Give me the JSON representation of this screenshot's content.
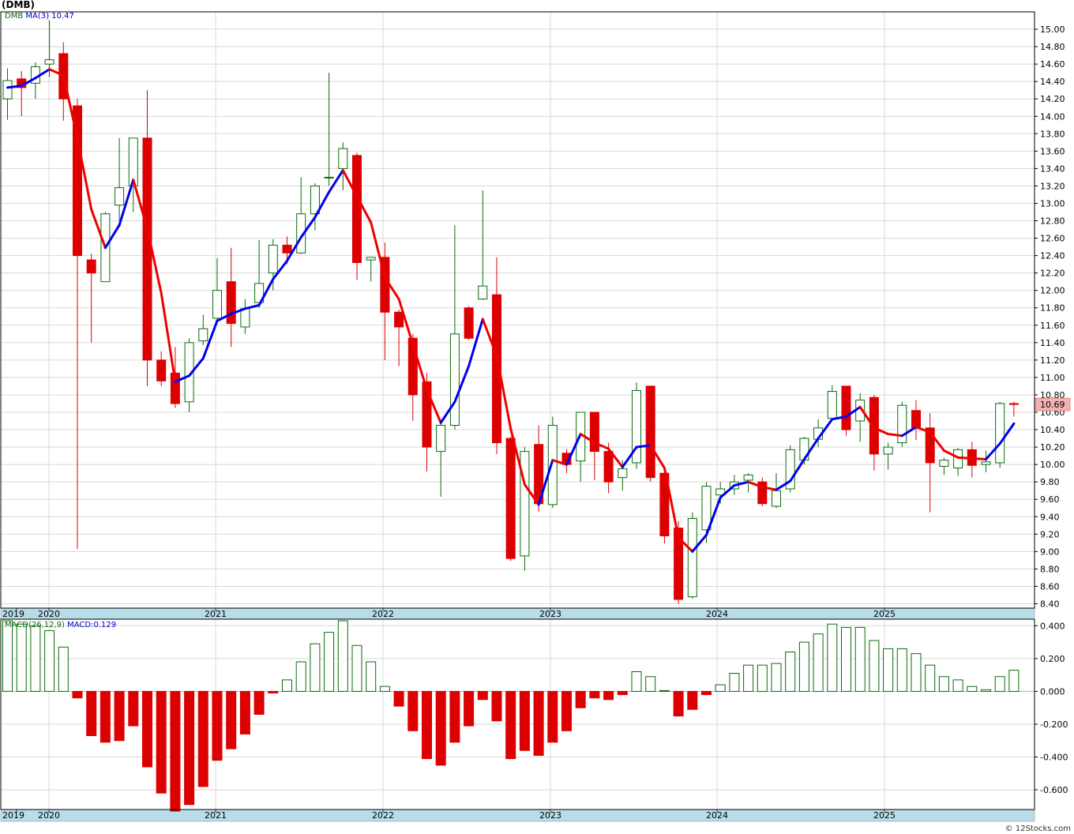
{
  "symbol_title": "(DMB)",
  "watermark": "© 12Stocks.com",
  "colors": {
    "up": "#0a6b0a",
    "down": "#dd0000",
    "ma_up": "#0000ee",
    "ma_down": "#ee0000",
    "axis_strip": "#b8dde8",
    "price_tag": "#f2b2b2"
  },
  "price_legend": {
    "symbol": "DMB",
    "ma_label": "MA(3)",
    "ma_value": "10.47"
  },
  "macd_legend": {
    "label": "MACD(26,12,9)",
    "value_label": "MACD:0.129"
  },
  "last_price_tag": "10.69",
  "x_axis_labels": [
    "2019",
    "2020",
    "2021",
    "2022",
    "2023",
    "2024",
    "2025"
  ],
  "chart_data": [
    {
      "type": "candlestick",
      "title": "(DMB)",
      "interval": "monthly",
      "ylim": [
        8.35,
        15.2
      ],
      "y_ticks": [
        8.4,
        8.6,
        8.8,
        9.0,
        9.2,
        9.4,
        9.6,
        9.8,
        10.0,
        10.2,
        10.4,
        10.6,
        10.8,
        11.0,
        11.2,
        11.4,
        11.6,
        11.8,
        12.0,
        12.2,
        12.4,
        12.6,
        12.8,
        13.0,
        13.2,
        13.4,
        13.6,
        13.8,
        14.0,
        14.2,
        14.4,
        14.6,
        14.8,
        15.0
      ],
      "series": [
        {
          "name": "DMB",
          "ohlc": [
            [
              14.2,
              14.55,
              13.96,
              14.41
            ],
            [
              14.43,
              14.52,
              14.0,
              14.33
            ],
            [
              14.38,
              14.62,
              14.2,
              14.57
            ],
            [
              14.6,
              15.1,
              14.45,
              14.65
            ],
            [
              14.72,
              14.85,
              13.95,
              14.2
            ],
            [
              14.12,
              14.2,
              9.03,
              12.4
            ],
            [
              12.35,
              12.42,
              11.4,
              12.2
            ],
            [
              12.1,
              12.9,
              12.1,
              12.88
            ],
            [
              12.98,
              13.75,
              12.8,
              13.18
            ],
            [
              13.2,
              13.75,
              12.9,
              13.75
            ],
            [
              13.75,
              14.3,
              10.9,
              11.2
            ],
            [
              11.2,
              11.3,
              10.9,
              10.96
            ],
            [
              11.05,
              11.35,
              10.65,
              10.7
            ],
            [
              10.72,
              11.45,
              10.6,
              11.4
            ],
            [
              11.42,
              11.72,
              11.37,
              11.56
            ],
            [
              11.68,
              12.37,
              11.66,
              12.0
            ],
            [
              12.1,
              12.49,
              11.35,
              11.62
            ],
            [
              11.58,
              11.9,
              11.5,
              11.79
            ],
            [
              11.86,
              12.58,
              11.8,
              12.08
            ],
            [
              12.2,
              12.59,
              12.0,
              12.52
            ],
            [
              12.52,
              12.62,
              12.3,
              12.43
            ],
            [
              12.43,
              13.3,
              12.42,
              12.88
            ],
            [
              12.88,
              13.23,
              12.69,
              13.2
            ],
            [
              13.3,
              14.5,
              13.2,
              13.3
            ],
            [
              13.4,
              13.7,
              13.15,
              13.63
            ],
            [
              13.55,
              13.58,
              12.12,
              12.32
            ],
            [
              12.35,
              12.38,
              12.1,
              12.38
            ],
            [
              12.38,
              12.55,
              11.2,
              11.75
            ],
            [
              11.75,
              11.78,
              11.13,
              11.58
            ],
            [
              11.45,
              11.5,
              10.5,
              10.8
            ],
            [
              10.95,
              11.05,
              9.92,
              10.2
            ],
            [
              10.15,
              10.5,
              9.63,
              10.45
            ],
            [
              10.45,
              12.75,
              10.4,
              11.5
            ],
            [
              11.8,
              11.82,
              11.43,
              11.45
            ],
            [
              11.9,
              13.15,
              11.89,
              12.05
            ],
            [
              11.95,
              12.38,
              10.12,
              10.25
            ],
            [
              10.3,
              10.32,
              8.89,
              8.92
            ],
            [
              8.95,
              10.2,
              8.78,
              10.15
            ],
            [
              10.23,
              10.45,
              9.46,
              9.55
            ],
            [
              9.54,
              10.55,
              9.5,
              10.45
            ],
            [
              10.13,
              10.18,
              9.9,
              10.0
            ],
            [
              10.04,
              10.6,
              9.8,
              10.6
            ],
            [
              10.6,
              10.6,
              9.82,
              10.15
            ],
            [
              10.15,
              10.25,
              9.67,
              9.8
            ],
            [
              9.85,
              10.05,
              9.7,
              9.95
            ],
            [
              10.02,
              10.94,
              9.95,
              10.85
            ],
            [
              10.9,
              10.9,
              9.8,
              9.85
            ],
            [
              9.9,
              9.9,
              9.09,
              9.18
            ],
            [
              9.27,
              9.35,
              8.4,
              8.45
            ],
            [
              8.48,
              9.45,
              8.46,
              9.38
            ],
            [
              9.25,
              9.8,
              9.1,
              9.75
            ],
            [
              9.65,
              9.8,
              9.55,
              9.72
            ],
            [
              9.72,
              9.88,
              9.65,
              9.8
            ],
            [
              9.82,
              9.9,
              9.68,
              9.88
            ],
            [
              9.8,
              9.85,
              9.52,
              9.55
            ],
            [
              9.52,
              9.9,
              9.5,
              9.7
            ],
            [
              9.72,
              10.22,
              9.68,
              10.17
            ],
            [
              10.05,
              10.32,
              10.0,
              10.3
            ],
            [
              10.29,
              10.52,
              10.2,
              10.42
            ],
            [
              10.53,
              10.91,
              10.5,
              10.84
            ],
            [
              10.9,
              10.9,
              10.33,
              10.4
            ],
            [
              10.5,
              10.82,
              10.26,
              10.74
            ],
            [
              10.77,
              10.8,
              9.93,
              10.12
            ],
            [
              10.12,
              10.25,
              9.94,
              10.2
            ],
            [
              10.25,
              10.72,
              10.2,
              10.68
            ],
            [
              10.62,
              10.74,
              10.28,
              10.42
            ],
            [
              10.42,
              10.59,
              9.45,
              10.02
            ],
            [
              9.98,
              10.08,
              9.88,
              10.05
            ],
            [
              9.96,
              10.19,
              9.87,
              10.17
            ],
            [
              10.17,
              10.26,
              9.85,
              9.99
            ],
            [
              10.0,
              10.16,
              9.91,
              10.03
            ],
            [
              10.02,
              10.72,
              9.96,
              10.7
            ],
            [
              10.7,
              10.72,
              10.55,
              10.69
            ]
          ]
        },
        {
          "name": "MA(3)",
          "values": [
            14.33,
            14.35,
            14.44,
            14.54,
            14.47,
            13.75,
            12.93,
            12.49,
            12.75,
            13.27,
            12.71,
            11.97,
            10.95,
            11.02,
            11.22,
            11.65,
            11.73,
            11.79,
            11.83,
            12.13,
            12.34,
            12.61,
            12.84,
            13.13,
            13.38,
            13.08,
            12.78,
            12.15,
            11.9,
            11.38,
            10.86,
            10.48,
            10.72,
            11.13,
            11.67,
            11.25,
            10.41,
            9.77,
            9.54,
            10.05,
            10.0,
            10.35,
            10.25,
            10.18,
            9.97,
            10.2,
            10.22,
            9.96,
            9.16,
            9.0,
            9.19,
            9.62,
            9.76,
            9.8,
            9.74,
            9.71,
            9.81,
            10.06,
            10.3,
            10.52,
            10.55,
            10.66,
            10.42,
            10.35,
            10.33,
            10.43,
            10.37,
            10.16,
            10.08,
            10.07,
            10.06,
            10.24,
            10.47
          ]
        }
      ]
    },
    {
      "type": "bar",
      "title": "MACD(26,12,9)",
      "ylim": [
        -0.72,
        0.44
      ],
      "y_ticks": [
        -0.6,
        -0.4,
        -0.2,
        0.0,
        0.2,
        0.4
      ],
      "series": [
        {
          "name": "MACD",
          "values": [
            0.43,
            0.41,
            0.4,
            0.37,
            0.27,
            -0.04,
            -0.27,
            -0.31,
            -0.3,
            -0.21,
            -0.46,
            -0.62,
            -0.73,
            -0.69,
            -0.58,
            -0.42,
            -0.35,
            -0.26,
            -0.14,
            -0.01,
            0.07,
            0.18,
            0.29,
            0.36,
            0.43,
            0.28,
            0.18,
            0.03,
            -0.09,
            -0.24,
            -0.41,
            -0.45,
            -0.31,
            -0.21,
            -0.05,
            -0.18,
            -0.41,
            -0.36,
            -0.39,
            -0.31,
            -0.24,
            -0.1,
            -0.04,
            -0.05,
            -0.02,
            0.12,
            0.09,
            0.005,
            -0.15,
            -0.11,
            -0.02,
            0.04,
            0.11,
            0.16,
            0.16,
            0.17,
            0.24,
            0.3,
            0.35,
            0.41,
            0.39,
            0.39,
            0.31,
            0.26,
            0.26,
            0.23,
            0.16,
            0.09,
            0.07,
            0.03,
            0.01,
            0.09,
            0.129
          ]
        }
      ]
    }
  ]
}
